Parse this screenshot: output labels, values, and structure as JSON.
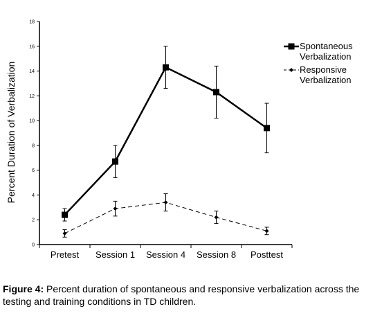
{
  "chart_data": {
    "type": "line",
    "categories": [
      "Pretest",
      "Session 1",
      "Session 4",
      "Session 8",
      "Posttest"
    ],
    "ylabel": "Percent Duration of  Verbalization",
    "xlabel": "",
    "ylim": [
      0,
      18
    ],
    "yticks": [
      "0",
      "2",
      "4",
      "6",
      "8",
      "10",
      "12",
      "14",
      "16",
      "18"
    ],
    "legend_position": "top-right",
    "series": [
      {
        "name": "Spontaneous Verbalization",
        "legend_lines": [
          "Spontaneous",
          "Verbalization"
        ],
        "style": "solid-square",
        "color": "#000000",
        "values": [
          2.4,
          6.7,
          14.3,
          12.3,
          9.4
        ],
        "error": [
          0.5,
          1.3,
          1.7,
          2.1,
          2.0
        ]
      },
      {
        "name": "Responsive Verbalization",
        "legend_lines": [
          "Responsive",
          "Verbalization"
        ],
        "style": "dashed-diamond",
        "color": "#000000",
        "values": [
          0.9,
          2.9,
          3.4,
          2.2,
          1.1
        ],
        "error": [
          0.3,
          0.6,
          0.7,
          0.5,
          0.3
        ]
      }
    ]
  },
  "caption": {
    "label": "Figure 4:",
    "text": " Percent duration of spontaneous and responsive verbalization across the testing and training conditions in TD children."
  }
}
